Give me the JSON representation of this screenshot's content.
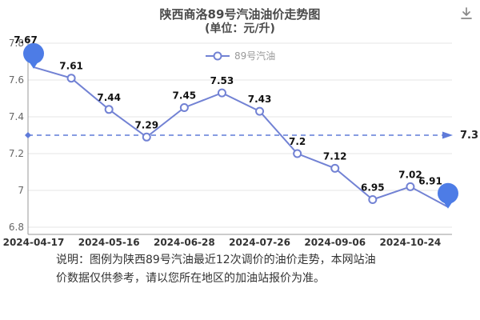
{
  "header": {
    "title": "陕西商洛89号汽油油价走势图",
    "subtitle": "(单位：元/升)"
  },
  "icons": {
    "download": "download-icon"
  },
  "chart_data": {
    "type": "line",
    "title": "陕西商洛89号汽油油价走势图",
    "subtitle": "(单位：元/升)",
    "series": [
      {
        "name": "89号汽油",
        "values": [
          7.67,
          7.61,
          7.44,
          7.29,
          7.45,
          7.53,
          7.43,
          7.2,
          7.12,
          6.95,
          7.02,
          6.91
        ]
      }
    ],
    "point_labels": [
      "7.67",
      "7.61",
      "7.44",
      "7.29",
      "7.45",
      "7.53",
      "7.43",
      "7.2",
      "7.12",
      "6.95",
      "7.02",
      "6.91"
    ],
    "x_labels": [
      "2024-04-17",
      "2024-05-16",
      "2024-06-28",
      "2024-07-26",
      "2024-09-06",
      "2024-10-24"
    ],
    "x_label_indices": [
      0,
      2,
      4,
      6,
      8,
      10
    ],
    "ylim": [
      6.8,
      7.8
    ],
    "yticks": [
      6.8,
      7,
      7.2,
      7.4,
      7.6,
      7.8
    ],
    "ref_line": {
      "value": 7.3,
      "label": "7.3"
    },
    "balloon_indices": [
      0,
      11
    ],
    "grid": true,
    "legend_position": "top-center",
    "xlabel": "",
    "ylabel": "",
    "colors": {
      "line": "#7282d4",
      "marker_fill": "#ffffff",
      "balloon": "#4d7ce6",
      "ref": "#5f7bd9",
      "grid": "#e4e4e4",
      "axis": "#999999",
      "tick": "#666666",
      "xtick": "#333333",
      "label": "#111111",
      "legend_text": "#999999"
    }
  },
  "note": {
    "line1": "说明：图例为陕西89号汽油最近12次调价的油价走势，本网站油",
    "line2": "价数据仅供参考，请以您所在地区的加油站报价为准。"
  }
}
